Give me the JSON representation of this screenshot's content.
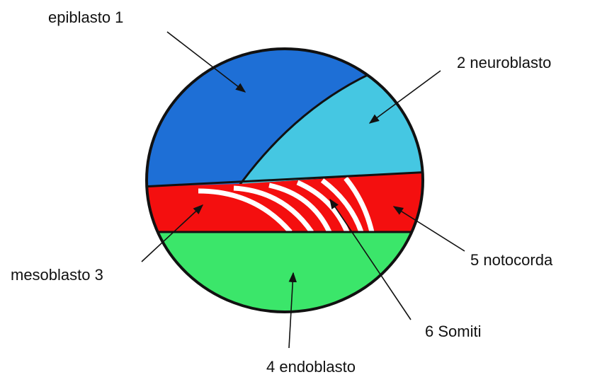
{
  "labels": [
    "epiblasto 1",
    "2 neuroblasto",
    "mesoblasto 3",
    "4 endoblasto",
    "5 notocorda",
    "6 Somiti"
  ]
}
